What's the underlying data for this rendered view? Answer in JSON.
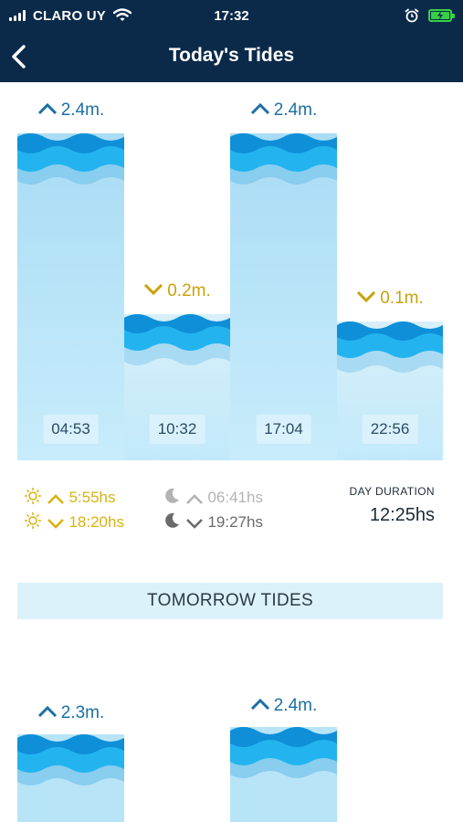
{
  "status": {
    "carrier": "CLARO UY",
    "time": "17:32"
  },
  "header": {
    "title": "Today's Tides"
  },
  "today": {
    "tides": [
      {
        "type": "high",
        "height": "2.4m.",
        "time": "04:53"
      },
      {
        "type": "low",
        "height": "0.2m.",
        "time": "10:32"
      },
      {
        "type": "high",
        "height": "2.4m.",
        "time": "17:04"
      },
      {
        "type": "low",
        "height": "0.1m.",
        "time": "22:56"
      }
    ]
  },
  "sun": {
    "rise": "5:55hs",
    "set": "18:20hs"
  },
  "moon": {
    "rise": "06:41hs",
    "set": "19:27hs"
  },
  "day_duration": {
    "label": "DAY DURATION",
    "value": "12:25hs"
  },
  "tomorrow": {
    "title": "TOMORROW TIDES",
    "tides": [
      {
        "type": "high",
        "height": "2.3m."
      },
      {
        "type": "high",
        "height": "2.4m."
      }
    ]
  },
  "colors": {
    "navy": "#0b2a4a",
    "wave_dark": "#0e8fd8",
    "wave_mid": "#23b4ef",
    "water": "#b8e4f8",
    "gold": "#d9b30f",
    "high_blue": "#1d6fa3"
  }
}
